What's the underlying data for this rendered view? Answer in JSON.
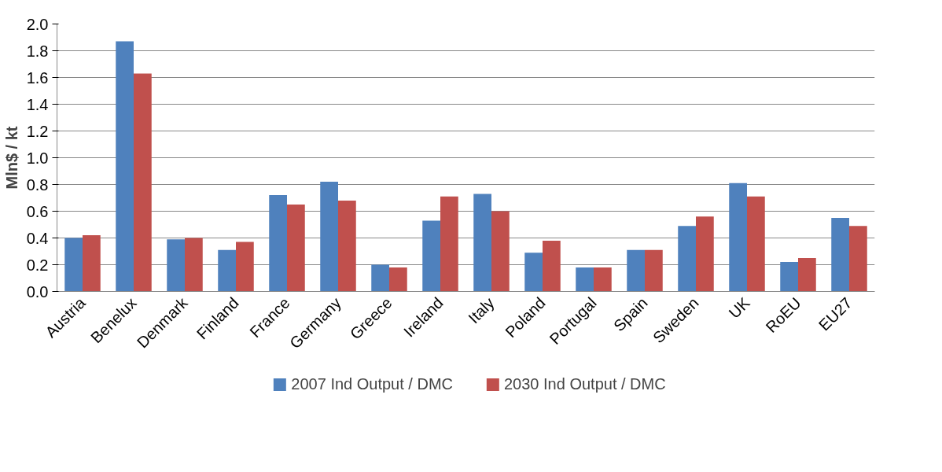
{
  "chart_data": {
    "type": "bar",
    "ylabel": "Mln$ / kt",
    "categories": [
      "Austria",
      "Benelux",
      "Denmark",
      "Finland",
      "France",
      "Germany",
      "Greece",
      "Ireland",
      "Italy",
      "Poland",
      "Portugal",
      "Spain",
      "Sweden",
      "UK",
      "RoEU",
      "EU27"
    ],
    "series": [
      {
        "name": "2007 Ind Output / DMC",
        "color": "#4f81bd",
        "values": [
          0.4,
          1.87,
          0.39,
          0.31,
          0.72,
          0.82,
          0.2,
          0.53,
          0.73,
          0.29,
          0.18,
          0.31,
          0.49,
          0.81,
          0.22,
          0.55
        ]
      },
      {
        "name": "2030 Ind Output / DMC",
        "color": "#c0504d",
        "values": [
          0.42,
          1.63,
          0.4,
          0.37,
          0.65,
          0.68,
          0.18,
          0.71,
          0.6,
          0.38,
          0.18,
          0.31,
          0.56,
          0.71,
          0.25,
          0.49
        ]
      }
    ],
    "ylim": [
      0,
      2.0
    ],
    "yticks": [
      {
        "value": 0,
        "label": "0.0"
      },
      {
        "value": 0.2,
        "label": "0.2"
      },
      {
        "value": 0.4,
        "label": "0.4"
      },
      {
        "value": 0.6,
        "label": "0.6"
      },
      {
        "value": 0.8,
        "label": "0.8"
      },
      {
        "value": 1.0,
        "label": "1.0"
      },
      {
        "value": 1.2,
        "label": "1.2"
      },
      {
        "value": 1.4,
        "label": "1.4"
      },
      {
        "value": 1.6,
        "label": "1.6"
      },
      {
        "value": 1.8,
        "label": "1.8"
      },
      {
        "value": 2.0,
        "label": "2.0"
      }
    ],
    "grid": "y",
    "legend": "bottom"
  }
}
